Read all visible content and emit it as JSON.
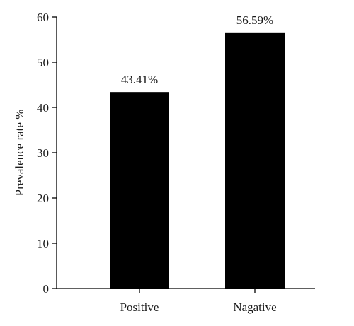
{
  "chart_data": {
    "type": "bar",
    "categories": [
      "Positive",
      "Nagative"
    ],
    "values": [
      43.41,
      56.59
    ],
    "data_labels": [
      "43.41%",
      "56.59%"
    ],
    "title": "",
    "xlabel": "",
    "ylabel": "Prevalence rate %",
    "ylim": [
      0,
      60
    ],
    "yticks": [
      0,
      10,
      20,
      30,
      40,
      50,
      60
    ],
    "grid": false,
    "legend": "none",
    "bar_color": "#000000"
  }
}
